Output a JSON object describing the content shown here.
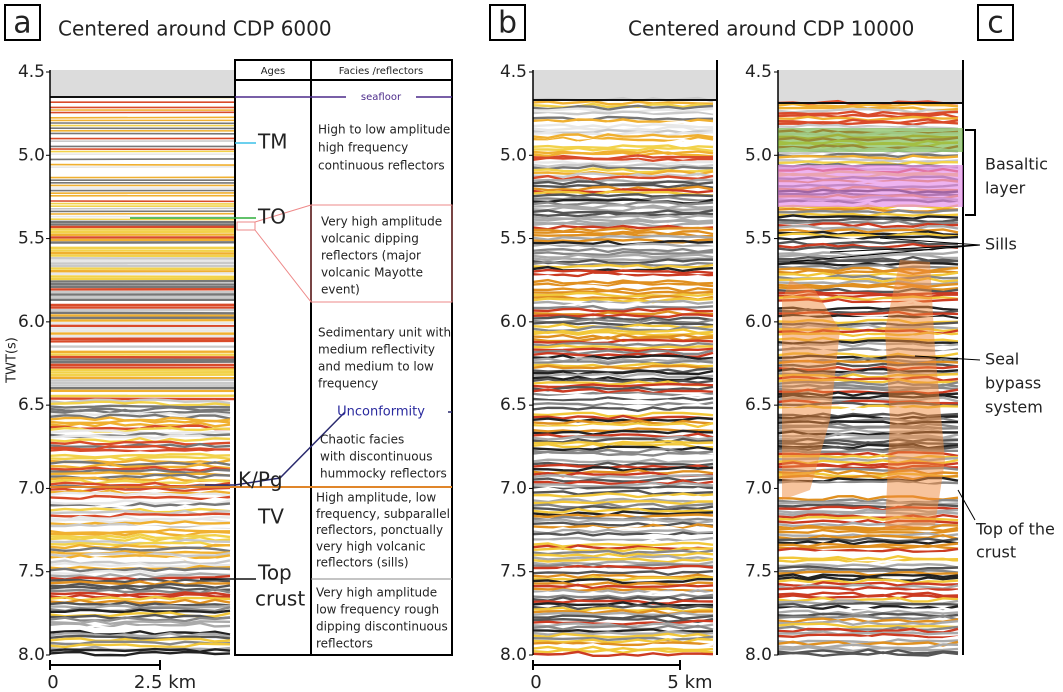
{
  "panels": [
    {
      "letter": "a",
      "title": "Centered around CDP 6000",
      "y_axis_label": "TWT(s)",
      "y_ticks": [
        "4.5",
        "5.0",
        "5.5",
        "6.0",
        "6.5",
        "7.0",
        "7.5",
        "8.0"
      ],
      "scale_labels": [
        "0",
        "2.5 km"
      ]
    },
    {
      "letter": "b",
      "title": "Centered around CDP 10000",
      "y_ticks": [
        "4.5",
        "5.0",
        "5.5",
        "6.0",
        "6.5",
        "7.0",
        "7.5",
        "8.0"
      ],
      "scale_labels": [
        "0",
        "5 km"
      ]
    },
    {
      "letter": "c",
      "y_ticks": [
        "4.5",
        "5.0",
        "5.5",
        "6.0",
        "6.5",
        "7.0",
        "7.5",
        "8.0"
      ],
      "annotations": [
        [
          "Basaltic",
          "layer"
        ],
        [
          "Sills"
        ],
        [
          "Seal",
          "bypass",
          "system"
        ],
        [
          "Top of the",
          "crust"
        ]
      ]
    }
  ],
  "table": {
    "headers": [
      "Ages",
      "Facies /reflectors"
    ],
    "ages": [
      "TM",
      "TO",
      "K/Pg",
      "TV",
      "Top",
      "crust"
    ],
    "facies": [
      [
        "seafloor"
      ],
      [
        "High to low amplitude",
        "high frequency",
        "continuous reflectors"
      ],
      [
        "Very high amplitude",
        "volcanic dipping",
        "reflectors (major",
        "volcanic Mayotte",
        "event)"
      ],
      [
        "Sedimentary unit with",
        "medium reflectivity",
        "and medium to low",
        "frequency"
      ],
      [
        "Unconformity"
      ],
      [
        "Chaotic facies",
        "with discontinuous",
        "hummocky reflectors"
      ],
      [
        "High amplitude, low",
        "frequency, subparallel",
        "reflectors, ponctually",
        "very high volcanic",
        "reflectors (sills)"
      ],
      [
        "Very high amplitude",
        "low frequency rough",
        "dipping discontinuous",
        "reflectors"
      ]
    ]
  }
}
